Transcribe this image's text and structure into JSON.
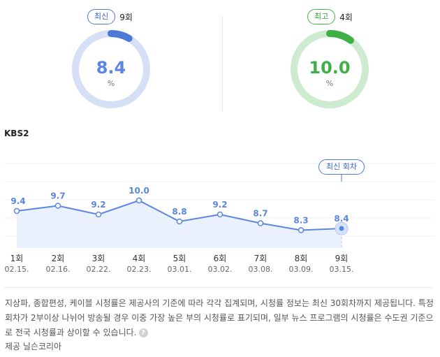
{
  "summary": {
    "latest": {
      "label": "최신",
      "count": "9회",
      "value": "8.4",
      "unit": "%",
      "fraction": 0.084,
      "color": "#4f79d8",
      "track": "#d5e0f6"
    },
    "best": {
      "label": "최고",
      "count": "4회",
      "value": "10.0",
      "unit": "%",
      "fraction": 0.1,
      "color": "#3fb046",
      "track": "#cdeccf"
    }
  },
  "channel": "KBS2",
  "latest_badge": "최신 회차",
  "chart_data": {
    "type": "area",
    "categories": [
      "1회",
      "2회",
      "3회",
      "4회",
      "5회",
      "6회",
      "7회",
      "8회",
      "9회"
    ],
    "dates": [
      "02.15.",
      "02.16.",
      "02.22.",
      "02.23.",
      "03.01.",
      "03.02.",
      "03.08.",
      "03.09.",
      "03.15."
    ],
    "values": [
      9.4,
      9.7,
      9.2,
      10.0,
      8.8,
      9.2,
      8.7,
      8.3,
      8.4
    ],
    "value_labels": [
      "9.4",
      "9.7",
      "9.2",
      "10.0",
      "8.8",
      "9.2",
      "8.7",
      "8.3",
      "8.4"
    ],
    "series_color": "#5b86e0",
    "fill_color": "#eaf1fd",
    "grid": true
  },
  "note": {
    "text": "지상파, 종합편성, 케이블 시청률은 제공사의 기준에 따라 각각 집계되며, 시청률 정보는 최신 30회차까지 제공됩니다. 특정 회차가 2부이상 나뉘어 방송될 경우 이중 가장 높은 부의 시청률로 표기되며, 일부 뉴스 프로그램의 시청률은 수도권 기준으로 전국 시청률과 상이할 수 있습니다.",
    "help_icon": "question-circle-icon"
  },
  "provider": "제공 닐슨코리아"
}
